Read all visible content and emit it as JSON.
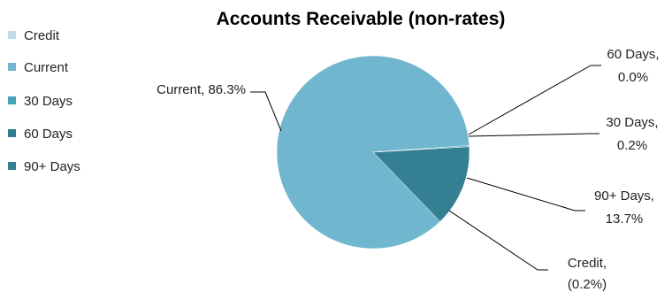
{
  "chart_data": {
    "type": "pie",
    "title": "Accounts Receivable (non-rates)",
    "legend_position": "left",
    "slices": [
      {
        "name": "Credit",
        "value": -0.2,
        "label": "Credit,",
        "pct_label": "(0.2%)",
        "color": "#bfdbe8"
      },
      {
        "name": "Current",
        "value": 86.3,
        "label": "Current, 86.3%",
        "pct_label": "",
        "color": "#6fb6ce"
      },
      {
        "name": "30 Days",
        "value": 0.2,
        "label": "30 Days,",
        "pct_label": "0.2%",
        "color": "#45a2b8"
      },
      {
        "name": "60 Days",
        "value": 0.0,
        "label": "60 Days,",
        "pct_label": "0.0%",
        "color": "#2f7c8e"
      },
      {
        "name": "90+ Days",
        "value": 13.7,
        "label": "90+ Days,",
        "pct_label": "13.7%",
        "color": "#357f93"
      }
    ]
  }
}
